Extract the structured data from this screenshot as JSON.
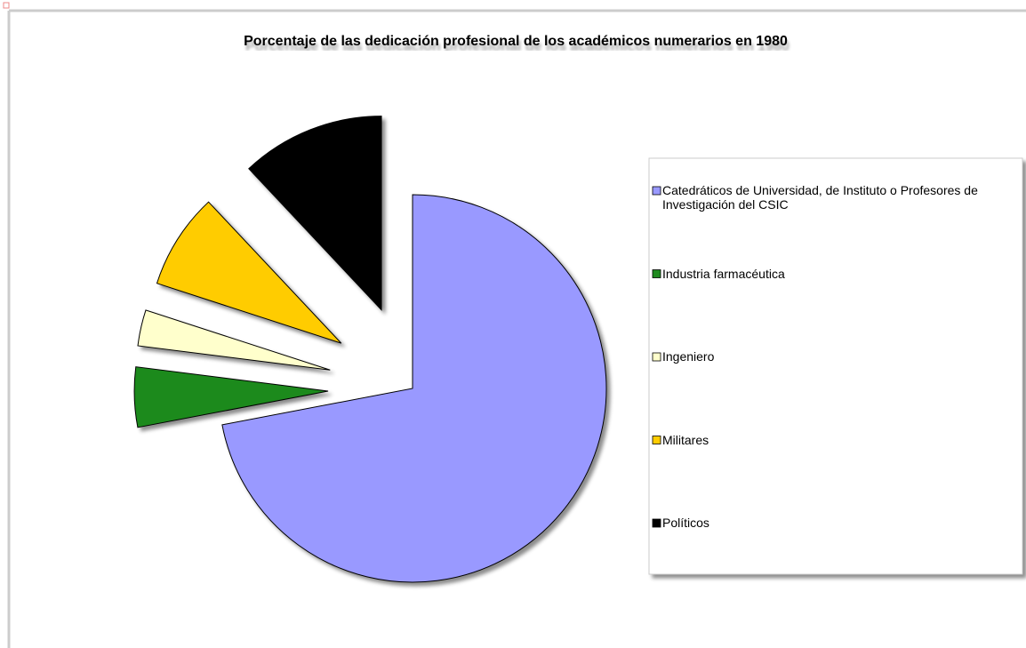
{
  "chart_data": {
    "type": "pie",
    "title": "Porcentaje de las dedicación profesional de los académicos numerarios en 1980",
    "categories": [
      "Catedráticos de Universidad, de Instituto o Profesores de Investigación del CSIC",
      "Industria farmacéutica",
      "Ingeniero",
      "Militares",
      "Políticos"
    ],
    "values": [
      72,
      5,
      3,
      8,
      12
    ],
    "colors": [
      "#9999ff",
      "#1f8a1f",
      "#ffffcc",
      "#ffcc00",
      "#000000"
    ],
    "legend": "right"
  }
}
